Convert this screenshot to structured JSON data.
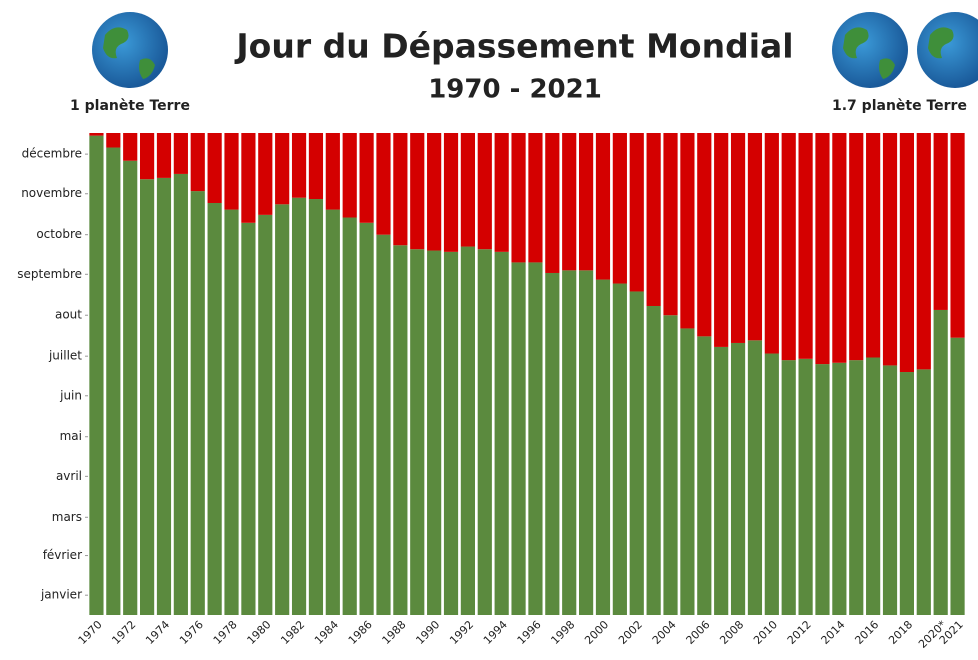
{
  "chart_data": {
    "type": "stacked-bar",
    "title": "Jour du Dépassement Mondial",
    "subtitle": "1970 - 2021",
    "annotations": [
      "1 planète Terre",
      "1.7 planète Terre"
    ],
    "categories": [
      "1970",
      null,
      "1972",
      null,
      "1974",
      null,
      "1976",
      null,
      "1978",
      null,
      "1980",
      null,
      "1982",
      null,
      "1984",
      null,
      "1986",
      null,
      "1988",
      null,
      "1990",
      null,
      "1992",
      null,
      "1994",
      null,
      "1996",
      null,
      "1998",
      null,
      "2000",
      null,
      "2002",
      null,
      "2004",
      null,
      "2006",
      null,
      "2008",
      null,
      "2010",
      null,
      "2012",
      null,
      "2014",
      null,
      "2016",
      null,
      "2018",
      null,
      "2020*",
      "2021"
    ],
    "series": [
      {
        "color": "#5b8a3e",
        "values": [
          363,
          354,
          344,
          330,
          331,
          334,
          321,
          312,
          307,
          297,
          303,
          311,
          316,
          315,
          307,
          301,
          297,
          288,
          280,
          277,
          276,
          275,
          279,
          277,
          275,
          267,
          267,
          259,
          261,
          261,
          254,
          251,
          245,
          234,
          227,
          217,
          211,
          203,
          206,
          208,
          198,
          193,
          194,
          190,
          191,
          193,
          195,
          189,
          184,
          186,
          231,
          210
        ]
      },
      {
        "color": "#d40000",
        "values": [
          2,
          11,
          21,
          35,
          34,
          31,
          44,
          53,
          58,
          68,
          62,
          54,
          49,
          50,
          58,
          64,
          68,
          77,
          85,
          88,
          89,
          90,
          86,
          88,
          90,
          98,
          98,
          106,
          104,
          104,
          111,
          114,
          120,
          131,
          138,
          148,
          154,
          162,
          159,
          157,
          167,
          172,
          171,
          175,
          174,
          172,
          170,
          176,
          181,
          179,
          134,
          155
        ]
      }
    ],
    "ylim": [
      0,
      365
    ],
    "yticks": [
      {
        "value": 15,
        "label": "janvier"
      },
      {
        "value": 45,
        "label": "février"
      },
      {
        "value": 74,
        "label": "mars"
      },
      {
        "value": 105,
        "label": "avril"
      },
      {
        "value": 135,
        "label": "mai"
      },
      {
        "value": 166,
        "label": "juin"
      },
      {
        "value": 196,
        "label": "juillet"
      },
      {
        "value": 227,
        "label": "aout"
      },
      {
        "value": 258,
        "label": "septembre"
      },
      {
        "value": 288,
        "label": "octobre"
      },
      {
        "value": 319,
        "label": "novembre"
      },
      {
        "value": 349,
        "label": "décembre"
      }
    ]
  }
}
